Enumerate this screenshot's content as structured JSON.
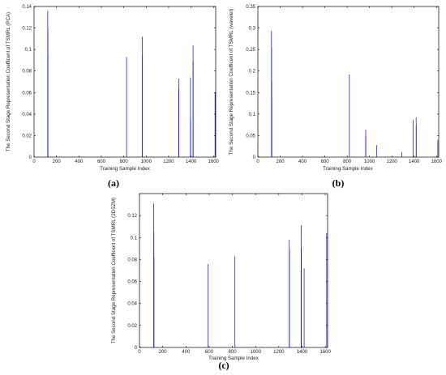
{
  "chart_data": [
    {
      "type": "bar",
      "panel_label": "(a)",
      "xlabel": "Training Sample Index",
      "ylabel": "The Second Stage Representation Coefficent of TSMRL (PCA)",
      "xlim": [
        0,
        1620
      ],
      "ylim": [
        0,
        0.14
      ],
      "xticks": [
        0,
        200,
        400,
        600,
        800,
        1000,
        1200,
        1400,
        1600
      ],
      "yticks": [
        0,
        0.02,
        0.04,
        0.06,
        0.08,
        0.1,
        0.12,
        0.14
      ],
      "color": "#0000ff",
      "grid": false,
      "stems": [
        {
          "x": 122,
          "y": 0.136
        },
        {
          "x": 123,
          "y": 0.12
        },
        {
          "x": 124,
          "y": 0.095
        },
        {
          "x": 825,
          "y": 0.093
        },
        {
          "x": 966,
          "y": 0.112
        },
        {
          "x": 967,
          "y": 0.094
        },
        {
          "x": 1291,
          "y": 0.073
        },
        {
          "x": 1292,
          "y": 0.064
        },
        {
          "x": 1395,
          "y": 0.074
        },
        {
          "x": 1396,
          "y": 0.034
        },
        {
          "x": 1418,
          "y": 0.104
        },
        {
          "x": 1419,
          "y": 0.089
        },
        {
          "x": 1614,
          "y": 0.06
        }
      ]
    },
    {
      "type": "bar",
      "panel_label": "(b)",
      "xlabel": "Training Sample Index",
      "ylabel": "The Second Stage Representation Coefficent of TSMRL (wavelet)",
      "xlim": [
        0,
        1620
      ],
      "ylim": [
        0,
        0.35
      ],
      "xticks": [
        0,
        200,
        400,
        600,
        800,
        1000,
        1200,
        1400,
        1600
      ],
      "yticks": [
        0,
        0.05,
        0.1,
        0.15,
        0.2,
        0.25,
        0.3,
        0.35
      ],
      "color": "#0000ff",
      "grid": false,
      "stems": [
        {
          "x": 122,
          "y": 0.293
        },
        {
          "x": 123,
          "y": 0.255
        },
        {
          "x": 124,
          "y": 0.175
        },
        {
          "x": 125,
          "y": 0.138
        },
        {
          "x": 820,
          "y": 0.192
        },
        {
          "x": 966,
          "y": 0.064
        },
        {
          "x": 967,
          "y": 0.048
        },
        {
          "x": 1063,
          "y": 0.028
        },
        {
          "x": 1289,
          "y": 0.012
        },
        {
          "x": 1390,
          "y": 0.086
        },
        {
          "x": 1418,
          "y": 0.092
        },
        {
          "x": 1419,
          "y": 0.074
        },
        {
          "x": 1612,
          "y": 0.04
        }
      ]
    },
    {
      "type": "bar",
      "panel_label": "(c)",
      "xlabel": "Training Sample Index",
      "ylabel": "The Second Stage Representation Coefficent of TSMRL (2DSZM)",
      "xlim": [
        0,
        1620
      ],
      "ylim": [
        0,
        0.14
      ],
      "xticks": [
        0,
        200,
        400,
        600,
        800,
        1000,
        1200,
        1400,
        1600
      ],
      "yticks": [
        0,
        0.02,
        0.04,
        0.06,
        0.08,
        0.1,
        0.12
      ],
      "color": "#0000ff",
      "grid": false,
      "stems": [
        {
          "x": 123,
          "y": 0.131
        },
        {
          "x": 124,
          "y": 0.105
        },
        {
          "x": 125,
          "y": 0.082
        },
        {
          "x": 590,
          "y": 0.076
        },
        {
          "x": 822,
          "y": 0.083
        },
        {
          "x": 1290,
          "y": 0.098
        },
        {
          "x": 1291,
          "y": 0.089
        },
        {
          "x": 1392,
          "y": 0.111
        },
        {
          "x": 1393,
          "y": 0.09
        },
        {
          "x": 1418,
          "y": 0.072
        },
        {
          "x": 1612,
          "y": 0.104
        }
      ]
    }
  ]
}
